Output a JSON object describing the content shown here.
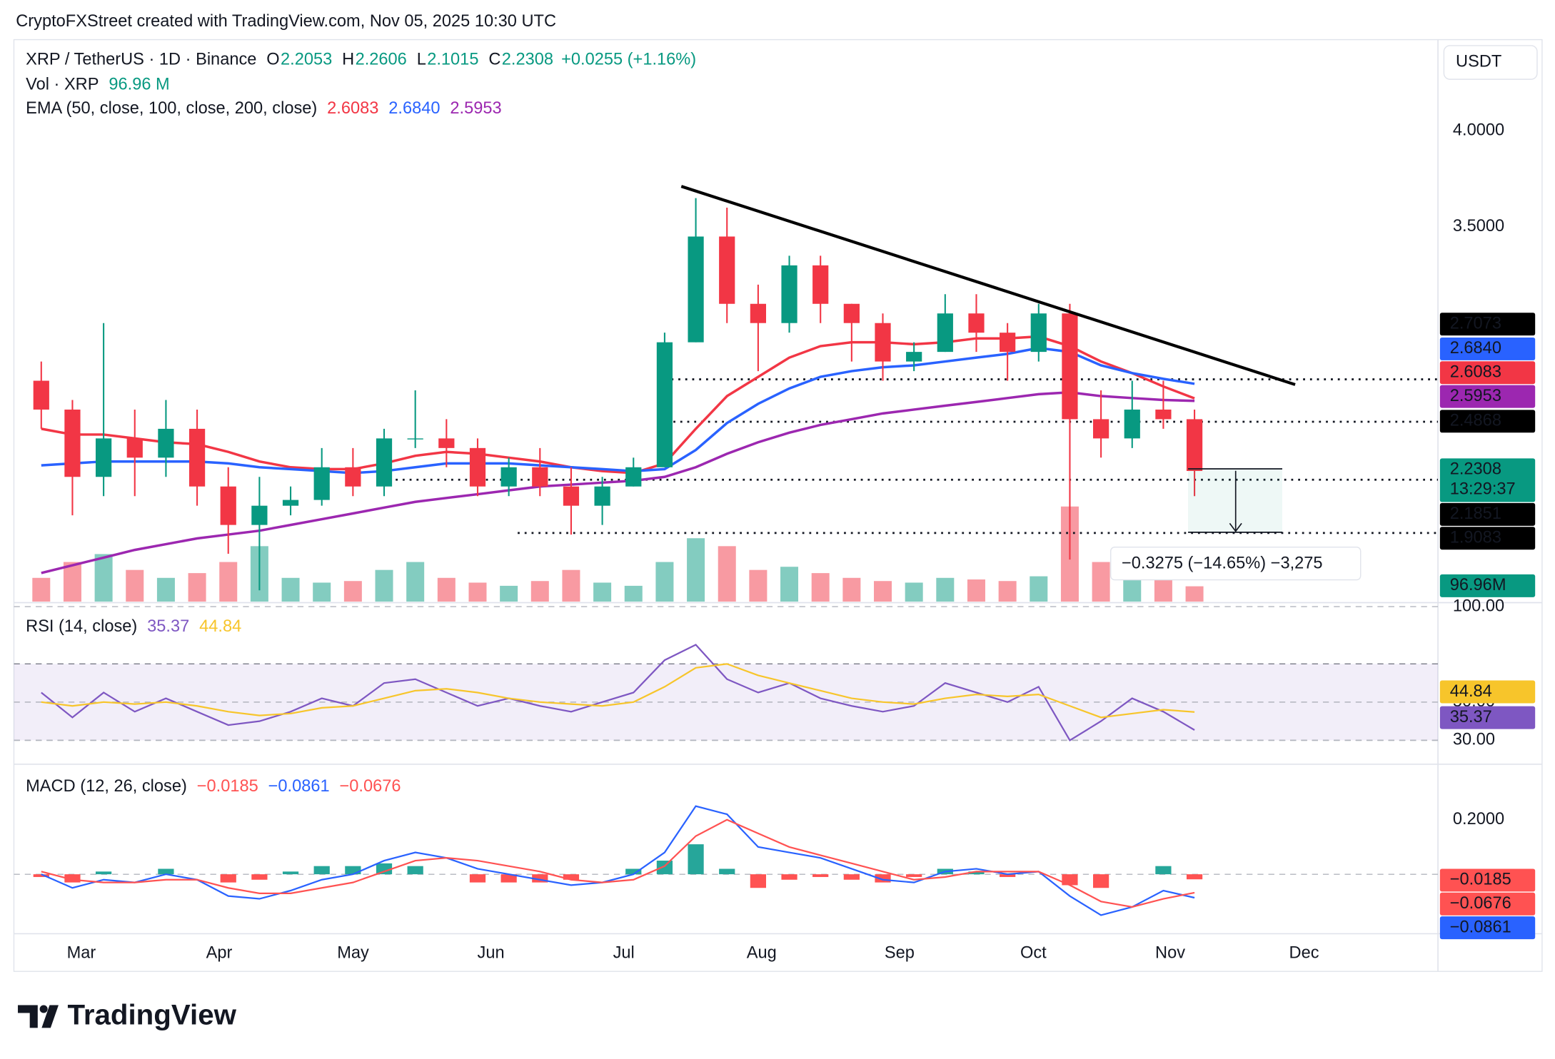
{
  "header": "CryptoFXStreet created with TradingView.com, Nov 05, 2025 10:30 UTC",
  "footer": "TradingView",
  "chart_data": [
    {
      "type": "candlestick",
      "title": "XRP / TetherUS · 1D · Binance",
      "ohlc": [
        {
          "label": "O",
          "value": 2.2053
        },
        {
          "label": "H",
          "value": 2.2606
        },
        {
          "label": "L",
          "value": 2.1015
        },
        {
          "label": "C",
          "value": 2.2308
        }
      ],
      "change": "+0.0255 (+1.16%)",
      "currency": "USDT",
      "countdown": "13:29:37",
      "measure_label": "−0.3275 (−14.65%) −3,275",
      "up_color": "#089981",
      "down_color": "#f23645",
      "month_labels": [
        "Mar",
        "Apr",
        "May",
        "Jun",
        "Jul",
        "Aug",
        "Sep",
        "Oct",
        "Nov",
        "Dec"
      ],
      "ylim": [
        1.551,
        4.474
      ],
      "yticks": [
        {
          "value": 3.5,
          "label": "3.5000"
        },
        {
          "value": 4,
          "label": "4.0000"
        }
      ],
      "levels": [
        2.7073,
        2.4868,
        2.1851,
        1.9083
      ],
      "open": [
        2.7,
        2.55,
        2.2,
        2.4,
        2.3,
        2.45,
        2.15,
        1.95,
        2.05,
        2.08,
        2.25,
        2.15,
        2.4,
        2.4,
        2.35,
        2.15,
        2.25,
        2.15,
        2.05,
        2.15,
        2.25,
        2.9,
        3.45,
        3.1,
        3.0,
        3.3,
        3.1,
        3.0,
        2.8,
        2.85,
        3.05,
        2.95,
        2.85,
        3.05,
        2.5,
        2.4,
        2.55,
        2.5
      ],
      "high": [
        2.8,
        2.6,
        3.0,
        2.55,
        2.6,
        2.55,
        2.25,
        2.2,
        2.15,
        2.35,
        2.35,
        2.45,
        2.65,
        2.5,
        2.4,
        2.3,
        2.35,
        2.25,
        2.2,
        2.3,
        2.95,
        3.65,
        3.6,
        3.2,
        3.35,
        3.35,
        3.1,
        3.05,
        2.9,
        3.15,
        3.15,
        3.0,
        3.1,
        3.1,
        2.65,
        2.7,
        2.7,
        2.55
      ],
      "low": [
        2.45,
        2.0,
        2.1,
        2.1,
        2.2,
        2.05,
        1.8,
        1.61,
        2.0,
        2.05,
        2.1,
        2.1,
        2.35,
        2.25,
        2.1,
        2.1,
        2.1,
        1.9,
        1.95,
        2.15,
        2.25,
        2.9,
        3.0,
        2.75,
        2.95,
        3.0,
        2.8,
        2.7,
        2.75,
        2.85,
        2.85,
        2.7,
        2.8,
        1.77,
        2.3,
        2.35,
        2.45,
        2.1
      ],
      "close": [
        2.55,
        2.2,
        2.4,
        2.3,
        2.45,
        2.15,
        1.95,
        2.05,
        2.08,
        2.25,
        2.15,
        2.4,
        2.4,
        2.35,
        2.15,
        2.25,
        2.15,
        2.05,
        2.15,
        2.25,
        2.9,
        3.45,
        3.1,
        3.0,
        3.3,
        3.1,
        3.0,
        2.8,
        2.85,
        3.05,
        2.95,
        2.85,
        3.05,
        2.5,
        2.4,
        2.55,
        2.5,
        2.2308
      ],
      "volume": {
        "name": "Vol · XRP",
        "last_label": "96.96 M",
        "axis_label": "96.96M",
        "ylim": [
          0,
          1000
        ],
        "values": [
          150,
          250,
          300,
          200,
          150,
          180,
          250,
          350,
          150,
          120,
          130,
          200,
          250,
          150,
          120,
          100,
          130,
          200,
          120,
          100,
          250,
          400,
          350,
          200,
          220,
          180,
          150,
          130,
          120,
          150,
          140,
          130,
          160,
          600,
          250,
          200,
          180,
          96.96
        ]
      },
      "ema": {
        "label": "EMA (50, close, 100, close, 200, close)",
        "series": [
          {
            "color": "#f23645",
            "last_label": "2.6083",
            "values": [
              2.45,
              2.42,
              2.42,
              2.4,
              2.38,
              2.37,
              2.33,
              2.28,
              2.25,
              2.24,
              2.24,
              2.27,
              2.31,
              2.33,
              2.32,
              2.3,
              2.28,
              2.25,
              2.23,
              2.22,
              2.27,
              2.45,
              2.62,
              2.72,
              2.82,
              2.88,
              2.9,
              2.9,
              2.89,
              2.9,
              2.92,
              2.92,
              2.93,
              2.88,
              2.8,
              2.74,
              2.67,
              2.6083
            ]
          },
          {
            "color": "#2962ff",
            "last_label": "2.6840",
            "values": [
              2.26,
              2.27,
              2.28,
              2.28,
              2.28,
              2.28,
              2.27,
              2.25,
              2.24,
              2.23,
              2.22,
              2.23,
              2.25,
              2.27,
              2.27,
              2.27,
              2.26,
              2.25,
              2.24,
              2.23,
              2.24,
              2.34,
              2.48,
              2.58,
              2.66,
              2.72,
              2.75,
              2.77,
              2.78,
              2.8,
              2.82,
              2.84,
              2.87,
              2.85,
              2.78,
              2.74,
              2.71,
              2.684
            ]
          },
          {
            "color": "#9c27b0",
            "last_label": "2.5953",
            "values": [
              1.7,
              1.74,
              1.78,
              1.82,
              1.85,
              1.88,
              1.9,
              1.92,
              1.95,
              1.98,
              2.01,
              2.04,
              2.07,
              2.09,
              2.11,
              2.13,
              2.15,
              2.16,
              2.17,
              2.18,
              2.2,
              2.25,
              2.32,
              2.38,
              2.43,
              2.47,
              2.5,
              2.53,
              2.55,
              2.57,
              2.59,
              2.61,
              2.63,
              2.64,
              2.62,
              2.61,
              2.6,
              2.5953
            ]
          }
        ]
      }
    },
    {
      "type": "line",
      "title": "RSI (14, close)",
      "ylim": [
        18,
        100
      ],
      "yticks": [
        {
          "value": 100,
          "label": "100.00"
        },
        {
          "value": 50,
          "label": "50.00"
        },
        {
          "value": 30,
          "label": "30.00"
        }
      ],
      "band": [
        30,
        70
      ],
      "series": [
        {
          "color": "#7e57c2",
          "last_label": "35.37",
          "values": [
            55,
            42,
            55,
            45,
            52,
            45,
            38,
            40,
            45,
            52,
            48,
            60,
            62,
            55,
            48,
            52,
            48,
            45,
            50,
            55,
            72,
            80,
            62,
            55,
            60,
            52,
            48,
            45,
            48,
            60,
            55,
            50,
            58,
            30,
            40,
            52,
            45,
            35.37
          ]
        },
        {
          "color": "#f7c52b",
          "last_label": "44.84",
          "values": [
            50,
            48,
            50,
            49,
            50,
            48,
            45,
            43,
            44,
            47,
            48,
            52,
            56,
            57,
            55,
            52,
            50,
            49,
            48,
            50,
            58,
            68,
            70,
            64,
            60,
            56,
            52,
            50,
            49,
            52,
            54,
            53,
            54,
            48,
            42,
            44,
            46,
            44.84
          ]
        }
      ]
    },
    {
      "type": "macd",
      "title": "MACD (12, 26, close)",
      "ylim": [
        -0.218,
        0.4
      ],
      "yticks": [
        {
          "value": 0.2,
          "label": "0.2000"
        }
      ],
      "histogram": {
        "up_color": "#26a69a",
        "down_color": "#ff5252",
        "last_label": "−0.0185",
        "values": [
          -0.01,
          -0.03,
          0.01,
          0,
          0.02,
          0,
          -0.03,
          -0.02,
          0.01,
          0.03,
          0.03,
          0.04,
          0.03,
          0,
          -0.03,
          -0.03,
          -0.03,
          -0.02,
          0,
          0.02,
          0.05,
          0.11,
          0.02,
          -0.05,
          -0.02,
          -0.01,
          -0.02,
          -0.03,
          -0.01,
          0.02,
          0.01,
          -0.01,
          0,
          -0.04,
          -0.05,
          0,
          0.03,
          -0.0185
        ]
      },
      "series": [
        {
          "color": "#2962ff",
          "last_label": "−0.0861",
          "values": [
            0,
            -0.05,
            -0.02,
            -0.03,
            0,
            -0.02,
            -0.08,
            -0.09,
            -0.06,
            -0.02,
            0,
            0.05,
            0.08,
            0.06,
            0.02,
            0,
            -0.02,
            -0.04,
            -0.03,
            0,
            0.08,
            0.25,
            0.22,
            0.1,
            0.08,
            0.06,
            0.02,
            -0.02,
            -0.03,
            0.01,
            0.02,
            0,
            0.01,
            -0.08,
            -0.15,
            -0.12,
            -0.06,
            -0.0861
          ]
        },
        {
          "color": "#ff5252",
          "last_label": "−0.0676",
          "values": [
            0.01,
            -0.02,
            -0.03,
            -0.03,
            -0.02,
            -0.02,
            -0.05,
            -0.07,
            -0.07,
            -0.05,
            -0.03,
            0.01,
            0.05,
            0.06,
            0.05,
            0.03,
            0.01,
            -0.02,
            -0.03,
            -0.02,
            0.03,
            0.14,
            0.2,
            0.15,
            0.1,
            0.07,
            0.04,
            0.01,
            -0.02,
            -0.01,
            0.01,
            0.01,
            0.01,
            -0.04,
            -0.1,
            -0.12,
            -0.09,
            -0.0676
          ]
        }
      ]
    }
  ]
}
